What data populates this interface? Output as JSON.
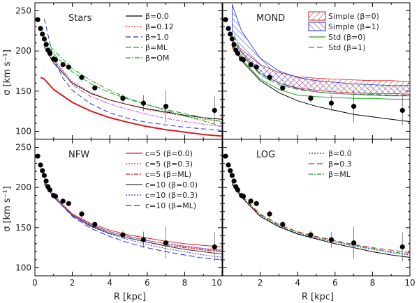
{
  "chart_data": {
    "type": "line",
    "xlabel": "R [kpc]",
    "ylabel": "σ [km s⁻¹]",
    "xlim": [
      0,
      10
    ],
    "ylim": [
      90,
      260
    ],
    "xticks": [
      "0",
      "2",
      "4",
      "6",
      "8",
      "10"
    ],
    "yticks": [
      "100",
      "150",
      "200",
      "250"
    ],
    "observed": {
      "x": [
        0.15,
        0.3,
        0.4,
        0.5,
        0.6,
        0.7,
        0.8,
        1.0,
        1.1,
        1.5,
        1.8,
        2.5,
        3.2,
        4.7,
        5.8,
        7.0,
        9.6
      ],
      "y": [
        239,
        228,
        221,
        215,
        208,
        201,
        197,
        190,
        189,
        183,
        180,
        167,
        154,
        141,
        135,
        131,
        126
      ],
      "err": [
        0,
        0,
        0,
        0,
        0,
        0,
        0,
        0,
        0,
        0,
        0,
        5,
        0,
        5,
        10,
        20,
        18
      ]
    },
    "panels": [
      {
        "title": "Stars",
        "legend": [
          "β=0.0",
          "β=0.12",
          "β=1.0",
          "β=ML",
          "β=OM"
        ],
        "series": [
          {
            "name": "β=0.0",
            "color": "#000000",
            "dash": "",
            "x": [
              0.5,
              1,
              2,
              3,
              4,
              5,
              6,
              7,
              8,
              9,
              10
            ],
            "y": [
              205,
              185,
              160,
              147,
              139,
              133,
              128,
              124,
              120,
              117,
              115
            ]
          },
          {
            "name": "β=0.12",
            "color": "#d22020",
            "dash": "2,2",
            "x": [
              0.5,
              1,
              2,
              3,
              4,
              5,
              6,
              7,
              8,
              9,
              10
            ],
            "y": [
              210,
              189,
              162,
              148,
              139,
              133,
              127,
              123,
              119,
              115,
              112
            ]
          },
          {
            "name": "β=1.0",
            "color": "#2030c8",
            "dash": "7,4",
            "x": [
              0.5,
              1,
              1.5,
              2,
              3,
              4,
              5,
              6,
              7,
              8,
              9,
              10
            ],
            "y": [
              240,
              190,
              166,
              151,
              134,
              123,
              116,
              111,
              108,
              105,
              103,
              101
            ]
          },
          {
            "name": "β=ML",
            "color": "#20a020",
            "dash": "8,3",
            "x": [
              0.5,
              1,
              2,
              3,
              4,
              5,
              6,
              7,
              8,
              9,
              10
            ],
            "y": [
              212,
              196,
              174,
              159,
              148,
              140,
              133,
              127,
              122,
              117,
              112
            ]
          },
          {
            "name": "β=OM",
            "color": "#20a020",
            "dash": "7,2,2,2",
            "x": [
              0.5,
              1,
              2,
              3,
              4,
              5,
              6,
              7,
              8,
              9,
              10
            ],
            "y": [
              215,
              201,
              178,
              163,
              151,
              141,
              133,
              126,
              119,
              113,
              106
            ]
          },
          {
            "name": "β=0.0 (red)",
            "color": "#d22020",
            "dash": "",
            "width": 2,
            "x": [
              0.3,
              0.5,
              1,
              2,
              3,
              4,
              5,
              6,
              7,
              8,
              9,
              10
            ],
            "y": [
              167,
              165,
              152,
              136,
              125,
              117,
              111,
              106,
              102,
              99,
              96,
              94
            ]
          },
          {
            "name": "β=OM (magenta)",
            "color": "#d040d0",
            "dash": "6,2,2,2",
            "x": [
              1,
              2,
              3,
              4,
              5,
              6,
              7,
              8,
              9,
              10
            ],
            "y": [
              190,
              158,
              143,
              134,
              127,
              121,
              116,
              112,
              109,
              106
            ]
          }
        ]
      },
      {
        "title": "MOND",
        "legend": [
          "Simple (β=0)",
          "Simple (β=1)",
          "Std (β=0)",
          "Std (β=1)"
        ],
        "series": [
          {
            "name": "black",
            "color": "#000000",
            "dash": "",
            "x": [
              0.5,
              1,
              2,
              3,
              4,
              5,
              6,
              7,
              8,
              9,
              10
            ],
            "y": [
              207,
              188,
              163,
              148,
              138,
              131,
              126,
              121,
              118,
              115,
              112
            ]
          },
          {
            "name": "Std (β=0)",
            "color": "#20a020",
            "dash": "",
            "x": [
              0.6,
              1,
              2,
              3,
              4,
              5,
              6,
              7,
              8,
              9,
              10
            ],
            "y": [
              205,
              190,
              165,
              152,
              145,
              143,
              142,
              141,
              141,
              140,
              140
            ]
          },
          {
            "name": "Std (β=1)",
            "color": "#20a020",
            "dash": "8,4",
            "x": [
              0.6,
              1,
              2,
              3,
              4,
              5,
              6,
              7,
              8,
              9,
              10
            ],
            "y": [
              220,
              198,
              170,
              158,
              152,
              149,
              147,
              146,
              146,
              145,
              145
            ]
          }
        ],
        "bands": [
          {
            "name": "Simple (β=0)",
            "color": "#d22020",
            "x": [
              0.5,
              1,
              2,
              3,
              4,
              5,
              6,
              7,
              8,
              9,
              10
            ],
            "lower": [
              203,
              194,
              172,
              160,
              154,
              151,
              149,
              148,
              147,
              147,
              146
            ],
            "upper": [
              212,
              202,
              183,
              173,
              168,
              166,
              165,
              164,
              163,
              163,
              162
            ]
          },
          {
            "name": "Simple (β=1)",
            "color": "#2030c8",
            "x": [
              0.5,
              1,
              2,
              3,
              4,
              5,
              6,
              7,
              8,
              9,
              10
            ],
            "lower": [
              215,
              198,
              172,
              160,
              153,
              149,
              147,
              146,
              145,
              144,
              144
            ],
            "upper": [
              258,
              225,
              191,
              175,
              167,
              163,
              161,
              159,
              158,
              157,
              157
            ]
          }
        ]
      },
      {
        "title": "NFW",
        "legend": [
          "c=5 (β=0.0)",
          "c=5 (β=0.3)",
          "c=5 (β=ML)",
          "c=10 (β=0.0)",
          "c=10 (β=0.3)",
          "c=10 (β=ML)"
        ],
        "series": [
          {
            "name": "c=5 (β=0.0)",
            "color": "#d22020",
            "dash": "",
            "x": [
              0.5,
              1,
              2,
              3,
              4,
              5,
              6,
              7,
              8,
              9,
              10
            ],
            "y": [
              205,
              189,
              167,
              155,
              147,
              141,
              137,
              133,
              130,
              128,
              126
            ]
          },
          {
            "name": "c=5 (β=0.3)",
            "color": "#d22020",
            "dash": "2,2",
            "x": [
              0.5,
              1,
              2,
              3,
              4,
              5,
              6,
              7,
              8,
              9,
              10
            ],
            "y": [
              208,
              191,
              167,
              154,
              145,
              139,
              134,
              130,
              126,
              123,
              121
            ]
          },
          {
            "name": "c=5 (β=ML)",
            "color": "#d22020",
            "dash": "6,2,2,2",
            "x": [
              0.5,
              1,
              2,
              3,
              4,
              5,
              6,
              7,
              8,
              9,
              10
            ],
            "y": [
              207,
              190,
              166,
              152,
              143,
              137,
              132,
              128,
              125,
              122,
              120
            ]
          },
          {
            "name": "c=10 (β=0.0)",
            "color": "#333333",
            "dash": "",
            "x": [
              0.5,
              1,
              2,
              3,
              4,
              5,
              6,
              7,
              8,
              9,
              10
            ],
            "y": [
              204,
              188,
              165,
              152,
              143,
              137,
              132,
              127,
              123,
              120,
              117
            ]
          },
          {
            "name": "c=10 (β=0.3)",
            "color": "#2030c8",
            "dash": "2,2",
            "x": [
              0.5,
              1,
              2,
              3,
              4,
              5,
              6,
              7,
              8,
              9,
              10
            ],
            "y": [
              207,
              190,
              165,
              151,
              142,
              135,
              129,
              124,
              120,
              116,
              113
            ]
          },
          {
            "name": "c=10 (β=ML)",
            "color": "#2030c8",
            "dash": "8,4",
            "x": [
              0.5,
              1,
              2,
              3,
              4,
              5,
              6,
              7,
              8,
              9,
              10
            ],
            "y": [
              205,
              189,
              164,
              149,
              139,
              131,
              125,
              120,
              116,
              112,
              110
            ]
          },
          {
            "name": "c=10 solid blue",
            "color": "#8060c0",
            "dash": "",
            "x": [
              0.5,
              1,
              2,
              3,
              4,
              5,
              6,
              7,
              8,
              9,
              10
            ],
            "y": [
              205,
              189,
              166,
              153,
              145,
              139,
              134,
              130,
              127,
              124,
              122
            ]
          }
        ]
      },
      {
        "title": "LOG",
        "legend": [
          "β=0.0",
          "β=0.3",
          "β=ML"
        ],
        "series": [
          {
            "name": "black",
            "color": "#000000",
            "dash": "",
            "x": [
              0.5,
              1,
              2,
              3,
              4,
              5,
              6,
              7,
              8,
              9,
              10
            ],
            "y": [
              204,
              188,
              164,
              151,
              142,
              136,
              130,
              125,
              120,
              116,
              113
            ]
          },
          {
            "name": "β=0.0",
            "color": "#2030c8",
            "dash": "2,2",
            "x": [
              0.5,
              1,
              2,
              3,
              4,
              5,
              6,
              7,
              8,
              9,
              10
            ],
            "y": [
              205,
              189,
              165,
              152,
              143,
              137,
              132,
              127,
              123,
              119,
              116
            ]
          },
          {
            "name": "β=0.3",
            "color": "#d22020",
            "dash": "8,4",
            "x": [
              0.5,
              1,
              2,
              3,
              4,
              5,
              6,
              7,
              8,
              9,
              10
            ],
            "y": [
              206,
              190,
              167,
              154,
              145,
              139,
              134,
              129,
              125,
              122,
              119
            ]
          },
          {
            "name": "β=ML",
            "color": "#20a020",
            "dash": "6,2,2,2",
            "x": [
              0.5,
              1,
              2,
              3,
              4,
              5,
              6,
              7,
              8,
              9,
              10
            ],
            "y": [
              205,
              189,
              166,
              153,
              144,
              138,
              133,
              128,
              124,
              120,
              117
            ]
          }
        ]
      }
    ]
  }
}
